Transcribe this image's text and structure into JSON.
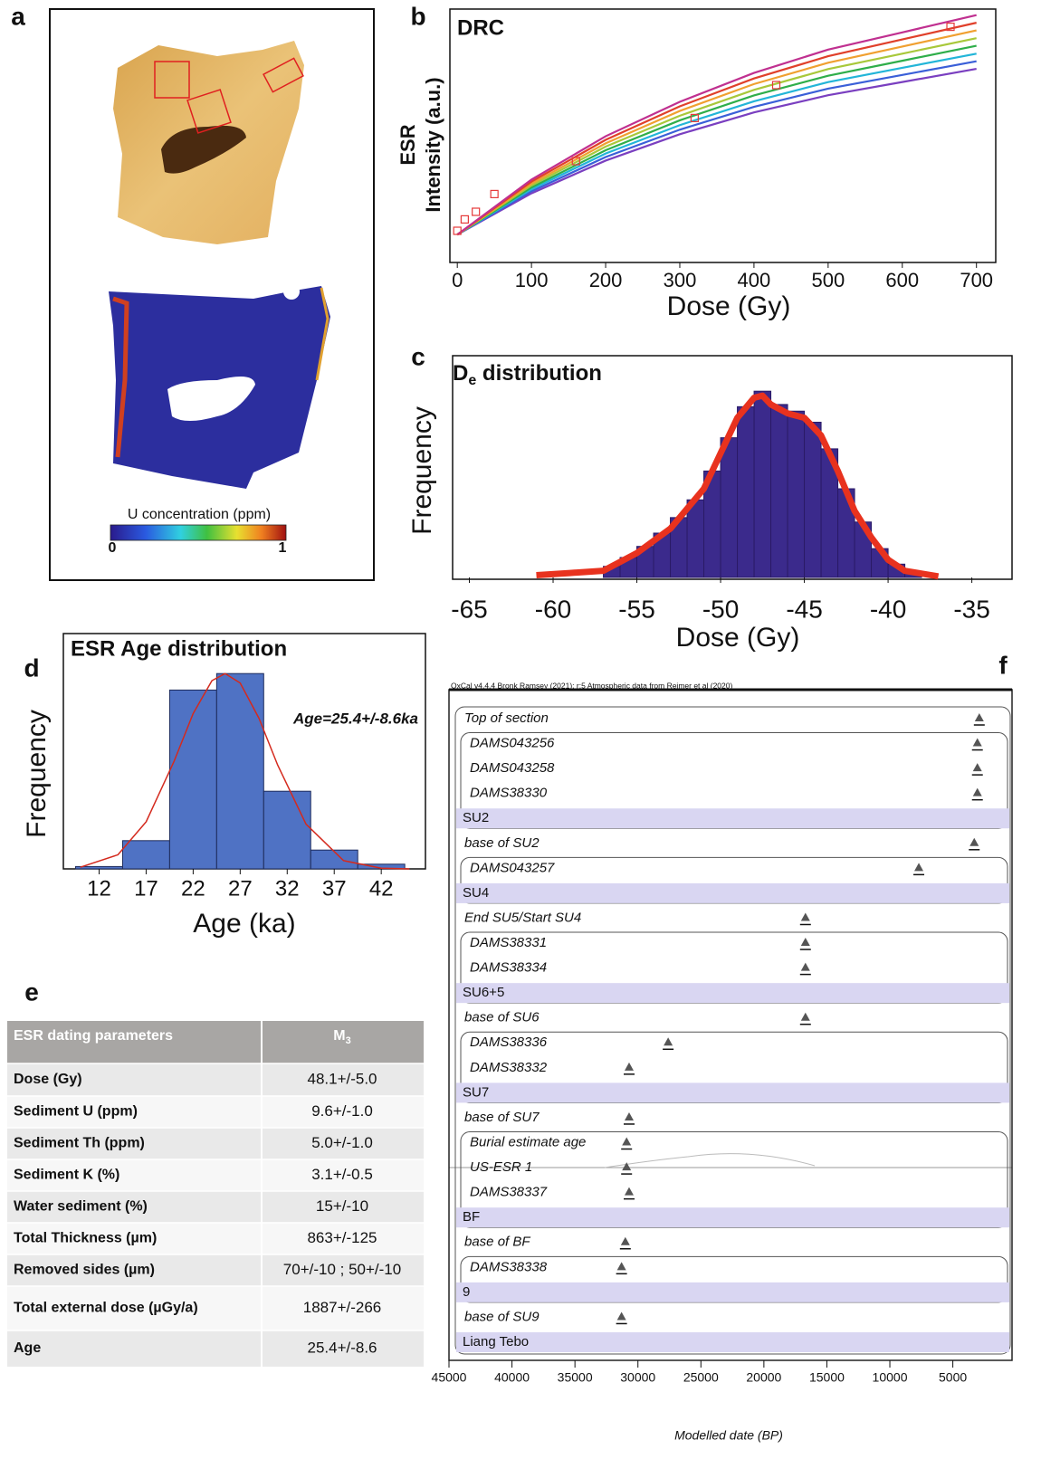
{
  "panel_labels": [
    "a",
    "b",
    "c",
    "d",
    "e",
    "f"
  ],
  "figure_a": {
    "colorbar_label": "U concentration (ppm)",
    "colorbar_ticks": [
      0,
      1
    ]
  },
  "chart_data": [
    {
      "type": "line",
      "title": "DRC",
      "xlabel": "Dose (Gy)",
      "ylabel": [
        "ESR",
        "Intensity (a.u.)"
      ],
      "xlim": [
        -10,
        726
      ],
      "ylim": [
        0,
        100
      ],
      "xticks": [
        0,
        100,
        200,
        300,
        400,
        500,
        600,
        700
      ],
      "x": [
        0,
        100,
        200,
        300,
        400,
        500,
        600,
        700
      ],
      "series": [
        {
          "color": "#7a3fc0",
          "values": [
            11,
            27.3,
            40.2,
            50.6,
            59.2,
            66,
            71.2,
            76.4
          ]
        },
        {
          "color": "#3a5fd8",
          "values": [
            11,
            28.1,
            41.6,
            52.4,
            61.4,
            68.6,
            74,
            79.4
          ]
        },
        {
          "color": "#22b5d8",
          "values": [
            11,
            28.9,
            43,
            54.2,
            63.6,
            71.2,
            76.8,
            82.4
          ]
        },
        {
          "color": "#2fae4a",
          "values": [
            11,
            29.6,
            44.3,
            56.1,
            65.9,
            73.7,
            79.6,
            85.5
          ]
        },
        {
          "color": "#a8c83a",
          "values": [
            11,
            30.4,
            45.7,
            57.9,
            68.1,
            76.3,
            82.4,
            88.5
          ]
        },
        {
          "color": "#f0a030",
          "values": [
            11,
            31.1,
            47,
            59.8,
            70.4,
            78.8,
            85.2,
            91.6
          ]
        },
        {
          "color": "#e0402a",
          "values": [
            11,
            31.9,
            48.4,
            61.6,
            72.6,
            81.4,
            88,
            94.6
          ]
        },
        {
          "color": "#c03090",
          "values": [
            11,
            32.7,
            49.8,
            63.4,
            74.8,
            84,
            90.8,
            97.6
          ]
        }
      ],
      "points": {
        "x": [
          0,
          10,
          25,
          50,
          160,
          320,
          430,
          665
        ],
        "values": [
          12.5,
          17,
          20,
          27,
          40,
          57,
          70,
          93
        ],
        "color": "#e53a3a"
      }
    },
    {
      "type": "histogram",
      "title": [
        "D",
        "e",
        " distribution"
      ],
      "xlabel": "Dose (Gy)",
      "ylabel": "Frequency",
      "xlim": [
        -66,
        -32.6
      ],
      "ylim": [
        0,
        100
      ],
      "xticks": [
        -65,
        -60,
        -55,
        -50,
        -45,
        -40,
        -35
      ],
      "bins": [
        -57,
        -56,
        -55,
        -54,
        -53,
        -52,
        -51,
        -50,
        -49,
        -48,
        -47,
        -46,
        -45,
        -44,
        -43,
        -42,
        -41,
        -40,
        -39,
        -38
      ],
      "values": [
        5,
        9,
        14,
        20,
        27,
        35,
        48,
        63,
        77,
        84,
        78,
        75,
        70,
        58,
        40,
        25,
        13,
        6,
        2
      ],
      "color": "#3b2a8c",
      "fit": {
        "x": [
          -61,
          -59,
          -57,
          -55,
          -53,
          -51,
          -50,
          -49,
          -48,
          -47.5,
          -47,
          -46,
          -45,
          -44,
          -43,
          -42,
          -41,
          -40,
          -39,
          -37
        ],
        "values": [
          1,
          2,
          3,
          11,
          22,
          40,
          56,
          72,
          81,
          82,
          78,
          74,
          72,
          64,
          48,
          30,
          18,
          8,
          3,
          0.5
        ],
        "color": "#e8321e"
      }
    },
    {
      "type": "histogram",
      "title": "ESR Age distribution",
      "annotation": "Age=25.4+/-8.6ka",
      "xlabel": "Age (ka)",
      "ylabel": "Frequency",
      "xlim": [
        8.2,
        46.7
      ],
      "ylim": [
        0,
        100
      ],
      "xticks": [
        12,
        17,
        22,
        27,
        32,
        37,
        42
      ],
      "bins": [
        9.5,
        14.5,
        19.5,
        24.5,
        29.5,
        34.5,
        39.5,
        44.5
      ],
      "values": [
        1,
        12,
        76,
        83,
        33,
        8,
        2
      ],
      "color": "#4f72c4",
      "fit": {
        "x": [
          10,
          14,
          17,
          20,
          22,
          24,
          25.4,
          27,
          29,
          31,
          34,
          38,
          42,
          45
        ],
        "values": [
          0.7,
          6,
          20,
          46,
          66,
          80,
          83,
          79,
          64,
          44,
          19,
          3.5,
          0.3,
          0
        ],
        "color": "#d42a1e"
      }
    }
  ],
  "table": {
    "header": [
      "ESR dating parameters",
      [
        "M",
        "3"
      ]
    ],
    "rows": [
      [
        "Dose (Gy)",
        "48.1+/-5.0"
      ],
      [
        "Sediment U (ppm)",
        "9.6+/-1.0"
      ],
      [
        "Sediment Th (ppm)",
        "5.0+/-1.0"
      ],
      [
        "Sediment K (%)",
        "3.1+/-0.5"
      ],
      [
        "Water sediment (%)",
        "15+/-10"
      ],
      [
        "Total Thickness (µm)",
        "863+/-125"
      ],
      [
        "Removed sides (µm)",
        "70+/-10 ; 50+/-10"
      ],
      [
        "Total external dose (µGy/a)",
        "1887+/-266"
      ],
      [
        "Age",
        "25.4+/-8.6"
      ]
    ]
  },
  "oxcal": {
    "header": "OxCal v4.4.4 Bronk Ramsey (2021); r:5 Atmospheric data from Reimer et al (2020)",
    "xlabel": "Modelled date (BP)",
    "xlim": [
      45000,
      300
    ],
    "xticks": [
      45000,
      40000,
      35000,
      30000,
      25000,
      20000,
      15000,
      10000,
      5000
    ],
    "rows": [
      {
        "label": "Top of section",
        "kind": "boundary",
        "date": 2900
      },
      {
        "label": "DAMS043256",
        "kind": "date",
        "date": 3050
      },
      {
        "label": "DAMS043258",
        "kind": "date",
        "date": 3050
      },
      {
        "label": "DAMS38330",
        "kind": "date",
        "date": 3050
      },
      {
        "label": "SU2",
        "kind": "phase"
      },
      {
        "label": "base of SU2",
        "kind": "boundary",
        "date": 3300
      },
      {
        "label": "DAMS043257",
        "kind": "date",
        "date": 7700
      },
      {
        "label": "SU4",
        "kind": "phase"
      },
      {
        "label": "End SU5/Start SU4",
        "kind": "boundary",
        "date": 16700
      },
      {
        "label": "DAMS38331",
        "kind": "date",
        "date": 16700
      },
      {
        "label": "DAMS38334",
        "kind": "date",
        "date": 16700
      },
      {
        "label": "SU6+5",
        "kind": "phase"
      },
      {
        "label": "base of SU6",
        "kind": "boundary",
        "date": 16700
      },
      {
        "label": "DAMS38336",
        "kind": "date",
        "date": 27600
      },
      {
        "label": "DAMS38332",
        "kind": "date",
        "date": 30700
      },
      {
        "label": "SU7",
        "kind": "phase"
      },
      {
        "label": "base of SU7",
        "kind": "boundary",
        "date": 30700
      },
      {
        "label": "Burial estimate age",
        "kind": "date",
        "date": 30900
      },
      {
        "label": "US-ESR 1",
        "kind": "date",
        "date": 30900
      },
      {
        "label": "DAMS38337",
        "kind": "date",
        "date": 30700
      },
      {
        "label": "BF",
        "kind": "phase"
      },
      {
        "label": "base of BF",
        "kind": "boundary",
        "date": 31000
      },
      {
        "label": "DAMS38338",
        "kind": "date",
        "date": 31300
      },
      {
        "label": "9",
        "kind": "phase"
      },
      {
        "label": "base of SU9",
        "kind": "boundary",
        "date": 31300
      },
      {
        "label": "Liang Tebo",
        "kind": "phase"
      }
    ]
  }
}
